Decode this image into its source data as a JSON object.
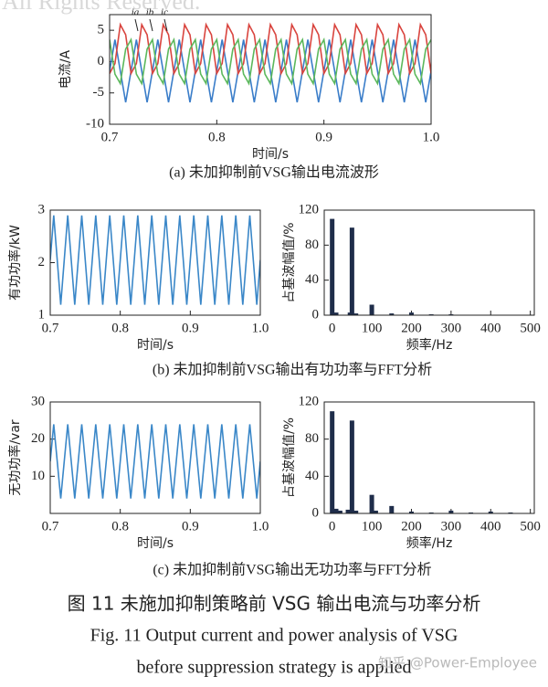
{
  "watermark_top": "All Rights Reserved.",
  "chart_data": [
    {
      "type": "line",
      "caption": "(a) 未加抑制前VSG输出电流波形",
      "x_label": "时间/s",
      "y_label": "电流/A",
      "xlim": [
        0.7,
        1.0
      ],
      "xticks": [
        0.7,
        0.8,
        0.9,
        {
          "value": 1,
          "label": "1.0"
        }
      ],
      "ylim": [
        -10,
        7.5
      ],
      "yticks": [
        -10,
        -5,
        0,
        5
      ],
      "x": [
        0.7,
        0.705,
        0.71,
        0.715,
        0.72,
        0.725,
        0.73,
        0.735,
        0.74,
        0.745,
        0.75,
        0.755,
        0.76,
        0.765,
        0.77,
        0.775,
        0.78,
        0.785,
        0.79,
        0.795,
        0.8,
        0.805,
        0.81,
        0.815,
        0.82,
        0.825,
        0.83,
        0.835,
        0.84,
        0.845,
        0.85,
        0.855,
        0.86,
        0.865,
        0.87,
        0.875,
        0.88,
        0.885,
        0.89,
        0.895,
        0.9,
        0.905,
        0.91,
        0.915,
        0.92,
        0.925,
        0.93,
        0.935,
        0.94,
        0.945,
        0.95,
        0.955,
        0.96,
        0.965,
        0.97,
        0.975,
        0.98,
        0.985,
        0.99,
        0.995,
        1
      ],
      "series": [
        {
          "name": "ia",
          "color": "#3a7dc9",
          "values": [
            -1.5,
            3.5,
            -1.5,
            -6.5,
            -1.5,
            3.5,
            -1.5,
            -6.5,
            -1.5,
            3.5,
            -1.5,
            -6.5,
            -1.5,
            3.5,
            -1.5,
            -6.5,
            -1.5,
            3.5,
            -1.5,
            -6.5,
            -1.5,
            3.5,
            -1.5,
            -6.5,
            -1.5,
            3.5,
            -1.5,
            -6.5,
            -1.5,
            3.5,
            -1.5,
            -6.5,
            -1.5,
            3.5,
            -1.5,
            -6.5,
            -1.5,
            3.5,
            -1.5,
            -6.5,
            -1.5,
            3.5,
            -1.5,
            -6.5,
            -1.5,
            3.5,
            -1.5,
            -6.5,
            -1.5,
            3.5,
            -1.5,
            -6.5,
            -1.5,
            3.5,
            -1.5,
            -6.5,
            -1.5,
            3.5,
            -1.5,
            -6.5,
            -1.5
          ]
        },
        {
          "name": "ib",
          "color": "#d9453f",
          "values": [
            -1.9,
            -0.3,
            5.9,
            4.3,
            -1.9,
            -0.3,
            5.9,
            4.3,
            -1.9,
            -0.3,
            5.9,
            4.3,
            -1.9,
            -0.3,
            5.9,
            4.3,
            -1.9,
            -0.3,
            5.9,
            4.3,
            -1.9,
            -0.3,
            5.9,
            4.3,
            -1.9,
            -0.3,
            5.9,
            4.3,
            -1.9,
            -0.3,
            5.9,
            4.3,
            -1.9,
            -0.3,
            5.9,
            4.3,
            -1.9,
            -0.3,
            5.9,
            4.3,
            -1.9,
            -0.3,
            5.9,
            4.3,
            -1.9,
            -0.3,
            5.9,
            4.3,
            -1.9,
            -0.3,
            5.9,
            4.3,
            -1.9,
            -0.3,
            5.9,
            4.3,
            -1.9,
            -0.3,
            5.9,
            4.3,
            -1.9
          ]
        },
        {
          "name": "ic",
          "color": "#5cb85c",
          "values": [
            3.5,
            -2,
            -3.5,
            2,
            3.5,
            -2,
            -3.5,
            2,
            3.5,
            -2,
            -3.5,
            2,
            3.5,
            -2,
            -3.5,
            2,
            3.5,
            -2,
            -3.5,
            2,
            3.5,
            -2,
            -3.5,
            2,
            3.5,
            -2,
            -3.5,
            2,
            3.5,
            -2,
            -3.5,
            2,
            3.5,
            -2,
            -3.5,
            2,
            3.5,
            -2,
            -3.5,
            2,
            3.5,
            -2,
            -3.5,
            2,
            3.5,
            -2,
            -3.5,
            2,
            3.5,
            -2,
            -3.5,
            2,
            3.5,
            -2,
            -3.5,
            2,
            3.5,
            -2,
            -3.5,
            2,
            3.5
          ]
        }
      ]
    },
    {
      "type": "line",
      "caption": "(b) 未加抑制前VSG输出有功功率与FFT分析",
      "x_label": "时间/s",
      "y_label": "有功功率/kW",
      "xlim": [
        0.7,
        1.0
      ],
      "xticks": [
        0.7,
        0.8,
        0.9,
        {
          "value": 1,
          "label": "1.0"
        }
      ],
      "ylim": [
        1,
        3
      ],
      "yticks": [
        1,
        2,
        3
      ],
      "x": [
        0.7,
        0.705,
        0.71,
        0.715,
        0.72,
        0.725,
        0.73,
        0.735,
        0.74,
        0.745,
        0.75,
        0.755,
        0.76,
        0.765,
        0.77,
        0.775,
        0.78,
        0.785,
        0.79,
        0.795,
        0.8,
        0.805,
        0.81,
        0.815,
        0.82,
        0.825,
        0.83,
        0.835,
        0.84,
        0.845,
        0.85,
        0.855,
        0.86,
        0.865,
        0.87,
        0.875,
        0.88,
        0.885,
        0.89,
        0.895,
        0.9,
        0.905,
        0.91,
        0.915,
        0.92,
        0.925,
        0.93,
        0.935,
        0.94,
        0.945,
        0.95,
        0.955,
        0.96,
        0.965,
        0.97,
        0.975,
        0.98,
        0.985,
        0.99,
        0.995,
        1
      ],
      "series": [
        {
          "color": "#3a87c8",
          "values": [
            2.05,
            2.9,
            2.05,
            1.2,
            2.05,
            2.9,
            2.05,
            1.2,
            2.05,
            2.9,
            2.05,
            1.2,
            2.05,
            2.9,
            2.05,
            1.2,
            2.05,
            2.9,
            2.05,
            1.2,
            2.05,
            2.9,
            2.05,
            1.2,
            2.05,
            2.9,
            2.05,
            1.2,
            2.05,
            2.9,
            2.05,
            1.2,
            2.05,
            2.9,
            2.05,
            1.2,
            2.05,
            2.9,
            2.05,
            1.2,
            2.05,
            2.9,
            2.05,
            1.2,
            2.05,
            2.9,
            2.05,
            1.2,
            2.05,
            2.9,
            2.05,
            1.2,
            2.05,
            2.9,
            2.05,
            1.2,
            2.05,
            2.9,
            2.05,
            1.2,
            2.05
          ]
        }
      ]
    },
    {
      "type": "bar",
      "x_label": "频率/Hz",
      "y_label": "占基波幅值/%",
      "color": "#1f2d4a",
      "xlim": [
        -20,
        510
      ],
      "xticks": [
        0,
        100,
        200,
        300,
        400,
        500
      ],
      "ylim": [
        0,
        120
      ],
      "yticks": [
        0,
        40,
        80,
        120
      ],
      "x": [
        0,
        10,
        45,
        50,
        60,
        100,
        150,
        200,
        250,
        300
      ],
      "values": [
        110,
        3,
        3,
        100,
        2,
        12,
        2,
        3,
        1,
        1
      ]
    },
    {
      "type": "line",
      "caption": "(c) 未加抑制前VSG输出无功功率与FFT分析",
      "x_label": "时间/s",
      "y_label": "无功功率/var",
      "xlim": [
        0.7,
        1.0
      ],
      "xticks": [
        0.7,
        0.8,
        0.9,
        {
          "value": 1,
          "label": "1.0"
        }
      ],
      "ylim": [
        0,
        30
      ],
      "yticks": [
        10,
        20,
        30
      ],
      "x": [
        0.7,
        0.705,
        0.71,
        0.715,
        0.72,
        0.725,
        0.73,
        0.735,
        0.74,
        0.745,
        0.75,
        0.755,
        0.76,
        0.765,
        0.77,
        0.775,
        0.78,
        0.785,
        0.79,
        0.795,
        0.8,
        0.805,
        0.81,
        0.815,
        0.82,
        0.825,
        0.83,
        0.835,
        0.84,
        0.845,
        0.85,
        0.855,
        0.86,
        0.865,
        0.87,
        0.875,
        0.88,
        0.885,
        0.89,
        0.895,
        0.9,
        0.905,
        0.91,
        0.915,
        0.92,
        0.925,
        0.93,
        0.935,
        0.94,
        0.945,
        0.95,
        0.955,
        0.96,
        0.965,
        0.97,
        0.975,
        0.98,
        0.985,
        0.99,
        0.995,
        1
      ],
      "series": [
        {
          "color": "#3a87c8",
          "values": [
            14,
            24,
            14,
            4,
            14,
            24,
            14,
            4,
            14,
            24,
            14,
            4,
            14,
            24,
            14,
            4,
            14,
            24,
            14,
            4,
            14,
            24,
            14,
            4,
            14,
            24,
            14,
            4,
            14,
            24,
            14,
            4,
            14,
            24,
            14,
            4,
            14,
            24,
            14,
            4,
            14,
            24,
            14,
            4,
            14,
            24,
            14,
            4,
            14,
            24,
            14,
            4,
            14,
            24,
            14,
            4,
            14,
            24,
            14,
            4,
            14
          ]
        }
      ]
    },
    {
      "type": "bar",
      "x_label": "频率/Hz",
      "y_label": "占基波幅值/%",
      "color": "#1f2d4a",
      "xlim": [
        -20,
        510
      ],
      "xticks": [
        0,
        100,
        200,
        300,
        400,
        500
      ],
      "ylim": [
        0,
        120
      ],
      "yticks": [
        0,
        40,
        80,
        120
      ],
      "x": [
        0,
        10,
        20,
        40,
        50,
        60,
        100,
        110,
        150,
        200,
        250,
        300,
        350,
        400,
        450
      ],
      "values": [
        110,
        5,
        3,
        4,
        100,
        3,
        20,
        3,
        8,
        2,
        1,
        3,
        1,
        2,
        1
      ]
    }
  ],
  "figure_caption_cn": "图 11  未施加抑制策略前 VSG 输出电流与功率分析",
  "figure_caption_en_1": "Fig. 11 Output current and power analysis of VSG",
  "figure_caption_en_2": "before suppression strategy is applied",
  "watermark_bottom": "知乎 @Power-Employee"
}
